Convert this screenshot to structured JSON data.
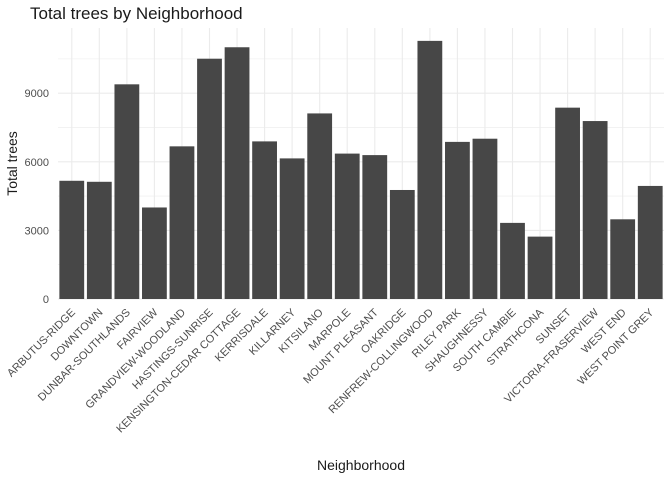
{
  "chart_data": {
    "type": "bar",
    "title": "Total trees by Neighborhood",
    "xlabel": "Neighborhood",
    "ylabel": "Total trees",
    "categories": [
      "ARBUTUS-RIDGE",
      "DOWNTOWN",
      "DUNBAR-SOUTHLANDS",
      "FAIRVIEW",
      "GRANDVIEW-WOODLAND",
      "HASTINGS-SUNRISE",
      "KENSINGTON-CEDAR COTTAGE",
      "KERRISDALE",
      "KILLARNEY",
      "KITSILANO",
      "MARPOLE",
      "MOUNT PLEASANT",
      "OAKRIDGE",
      "RENFREW-COLLINGWOOD",
      "RILEY PARK",
      "SHAUGHNESSY",
      "SOUTH CAMBIE",
      "STRATHCONA",
      "SUNSET",
      "VICTORIA-FRASERVIEW",
      "WEST END",
      "WEST POINT GREY"
    ],
    "values": [
      5169,
      5125,
      9387,
      4002,
      6675,
      10507,
      11008,
      6892,
      6148,
      8115,
      6358,
      6292,
      4767,
      11287,
      6870,
      7009,
      3328,
      2728,
      8367,
      7781,
      3485,
      4944
    ],
    "yticks": [
      0,
      3000,
      6000,
      9000
    ],
    "ylim": [
      0,
      11850
    ],
    "grid": true,
    "legend": "none",
    "bar_color": "#474747",
    "grid_color": "#ebebeb"
  }
}
